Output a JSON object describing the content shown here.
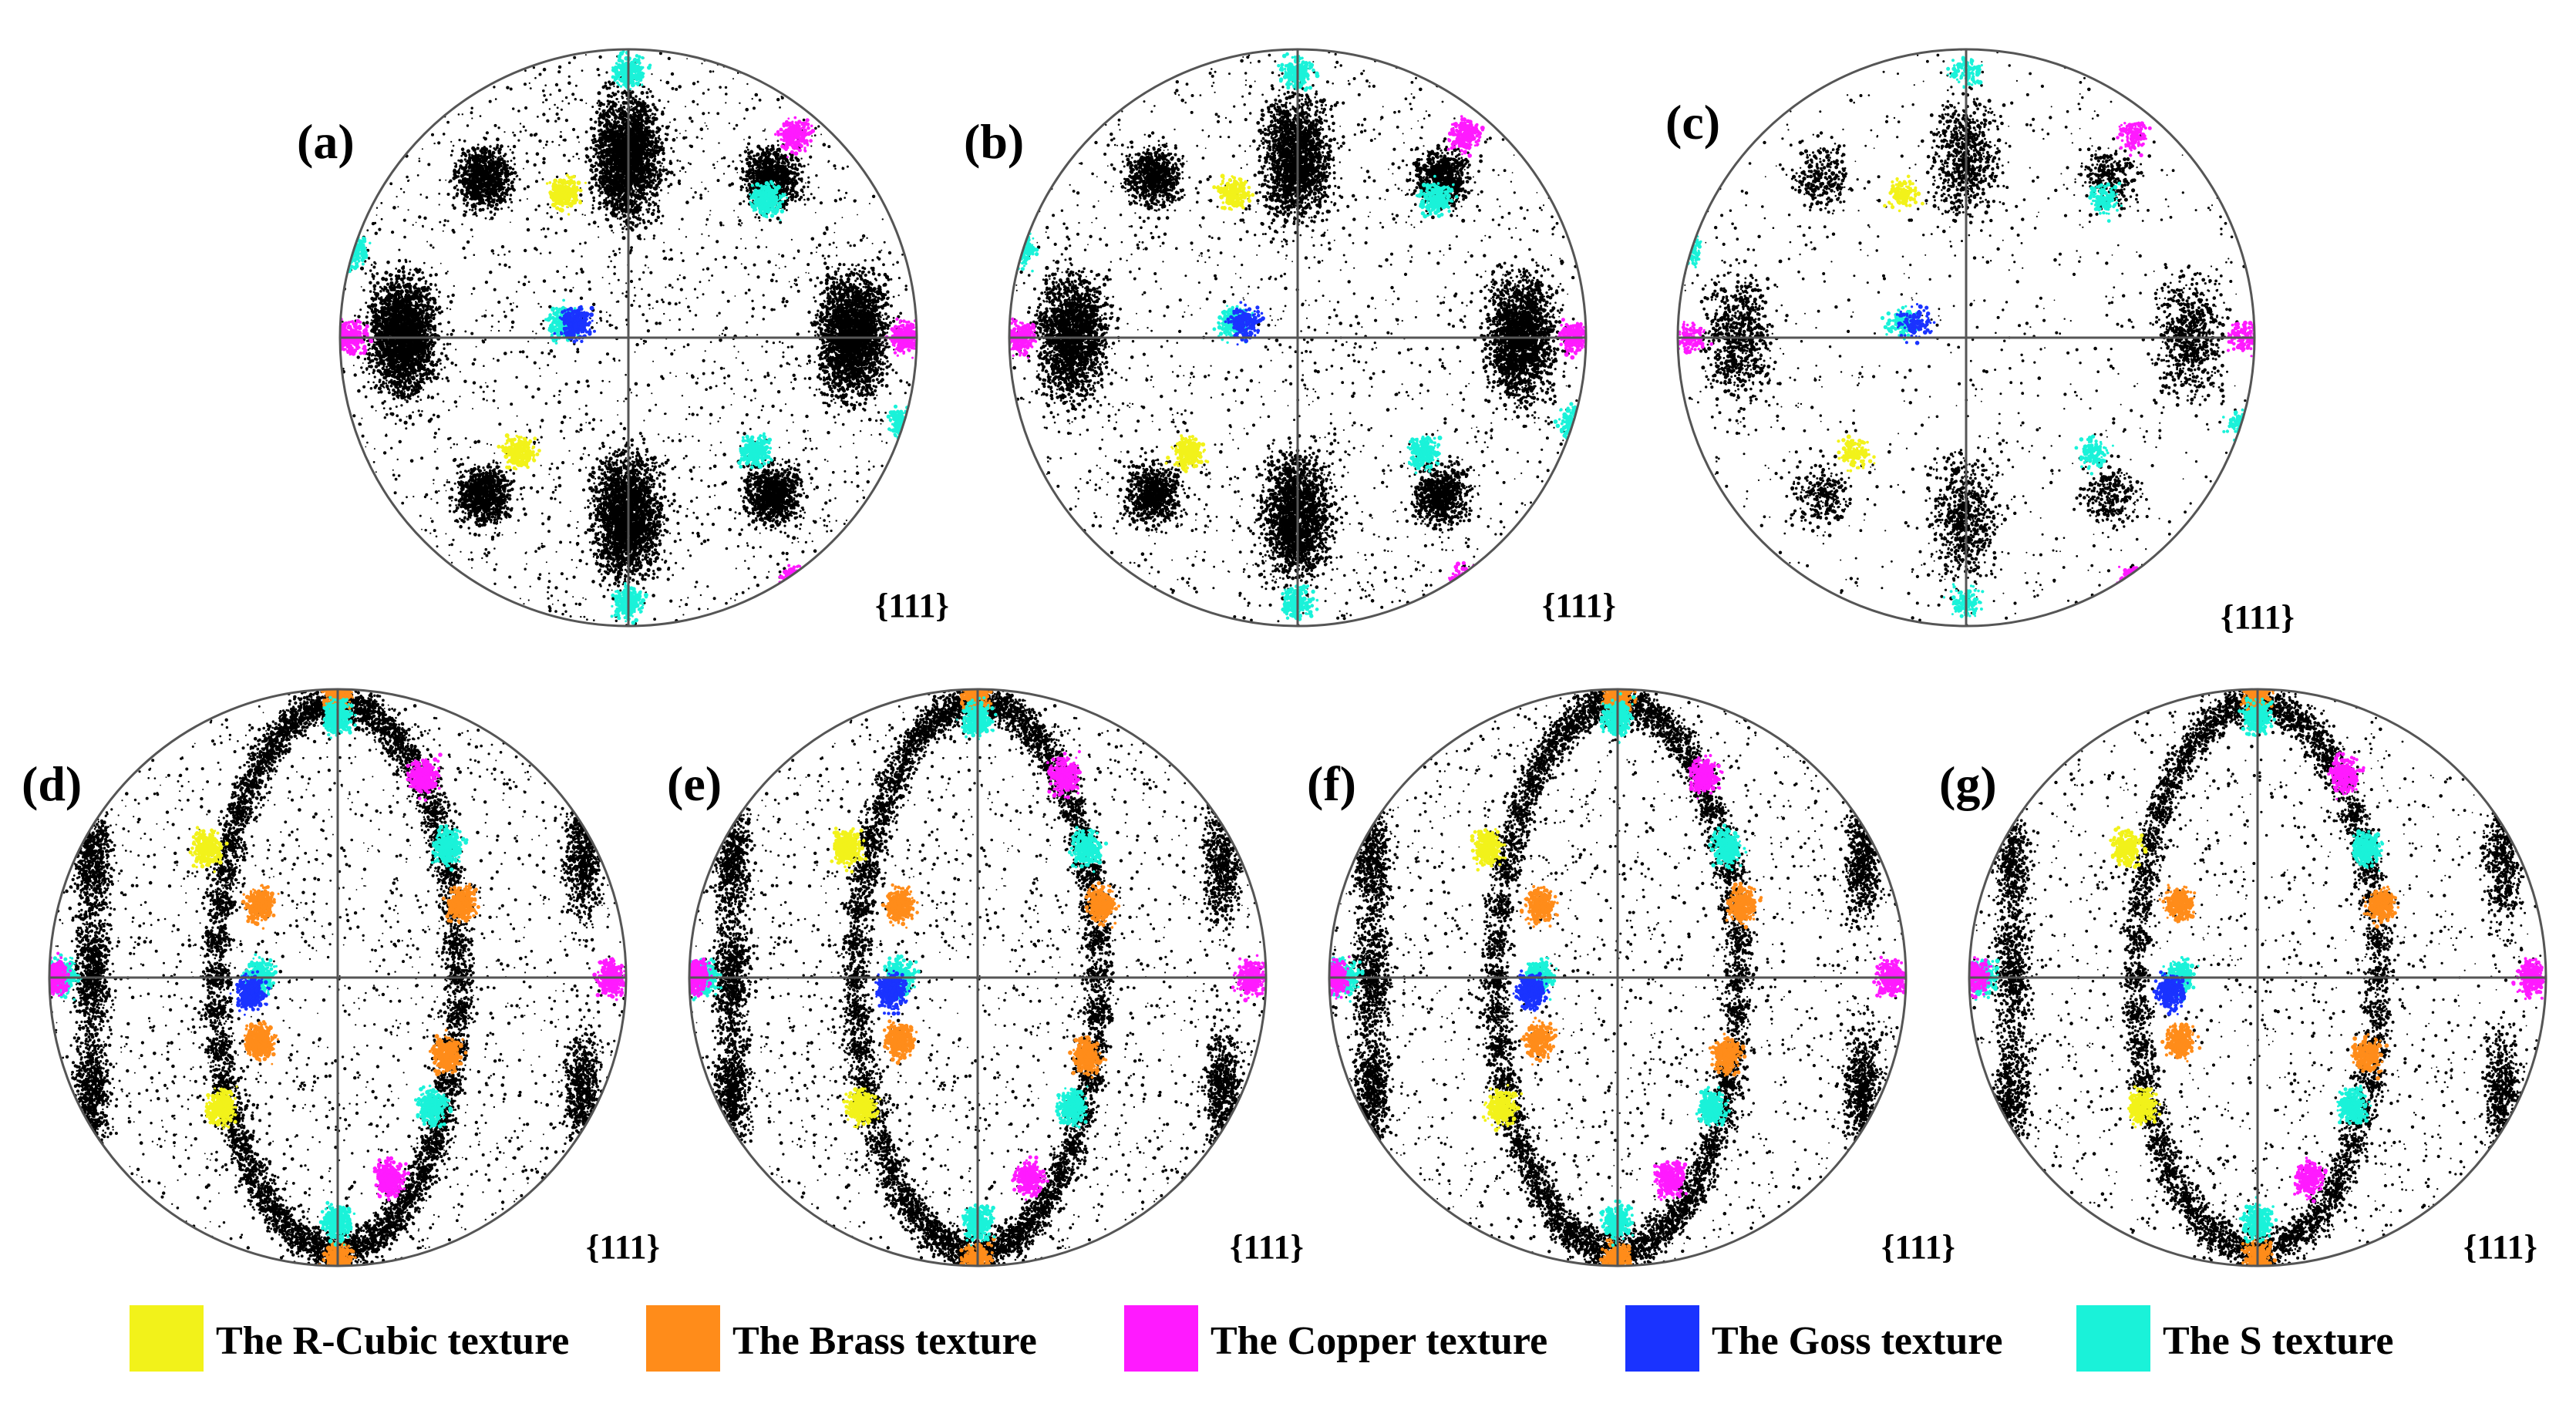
{
  "figure": {
    "colors": {
      "background": "#ffffff",
      "outline": "#555555",
      "density": "#000000",
      "r_cubic": "#f2f21a",
      "brass": "#ff8c1a",
      "copper": "#ff1aff",
      "goss": "#1a33ff",
      "s": "#1af2d9"
    },
    "pole_figures": [
      {
        "label": "(a)",
        "plane": "{111}",
        "pattern": "hex",
        "density": 1.0,
        "overlay": "cubic"
      },
      {
        "label": "(b)",
        "plane": "{111}",
        "pattern": "hex",
        "density": 0.8,
        "overlay": "cubic"
      },
      {
        "label": "(c)",
        "plane": "{111}",
        "pattern": "hex",
        "density": 0.28,
        "overlay": "cubic"
      },
      {
        "label": "(d)",
        "plane": "{111}",
        "pattern": "oval",
        "density": 1.0,
        "overlay": "rolled"
      },
      {
        "label": "(e)",
        "plane": "{111}",
        "pattern": "oval",
        "density": 0.95,
        "overlay": "rolled"
      },
      {
        "label": "(f)",
        "plane": "{111}",
        "pattern": "oval",
        "density": 0.9,
        "overlay": "rolled"
      },
      {
        "label": "(g)",
        "plane": "{111}",
        "pattern": "oval",
        "density": 0.75,
        "overlay": "rolled"
      }
    ],
    "legend": [
      {
        "key": "r_cubic",
        "label": "The R-Cubic texture",
        "color": "#f2f21a"
      },
      {
        "key": "brass",
        "label": "The Brass texture",
        "color": "#ff8c1a"
      },
      {
        "key": "copper",
        "label": "The Copper texture",
        "color": "#ff1aff"
      },
      {
        "key": "goss",
        "label": "The Goss texture",
        "color": "#1a33ff"
      },
      {
        "key": "s",
        "label": "The S texture",
        "color": "#1af2d9"
      }
    ]
  }
}
